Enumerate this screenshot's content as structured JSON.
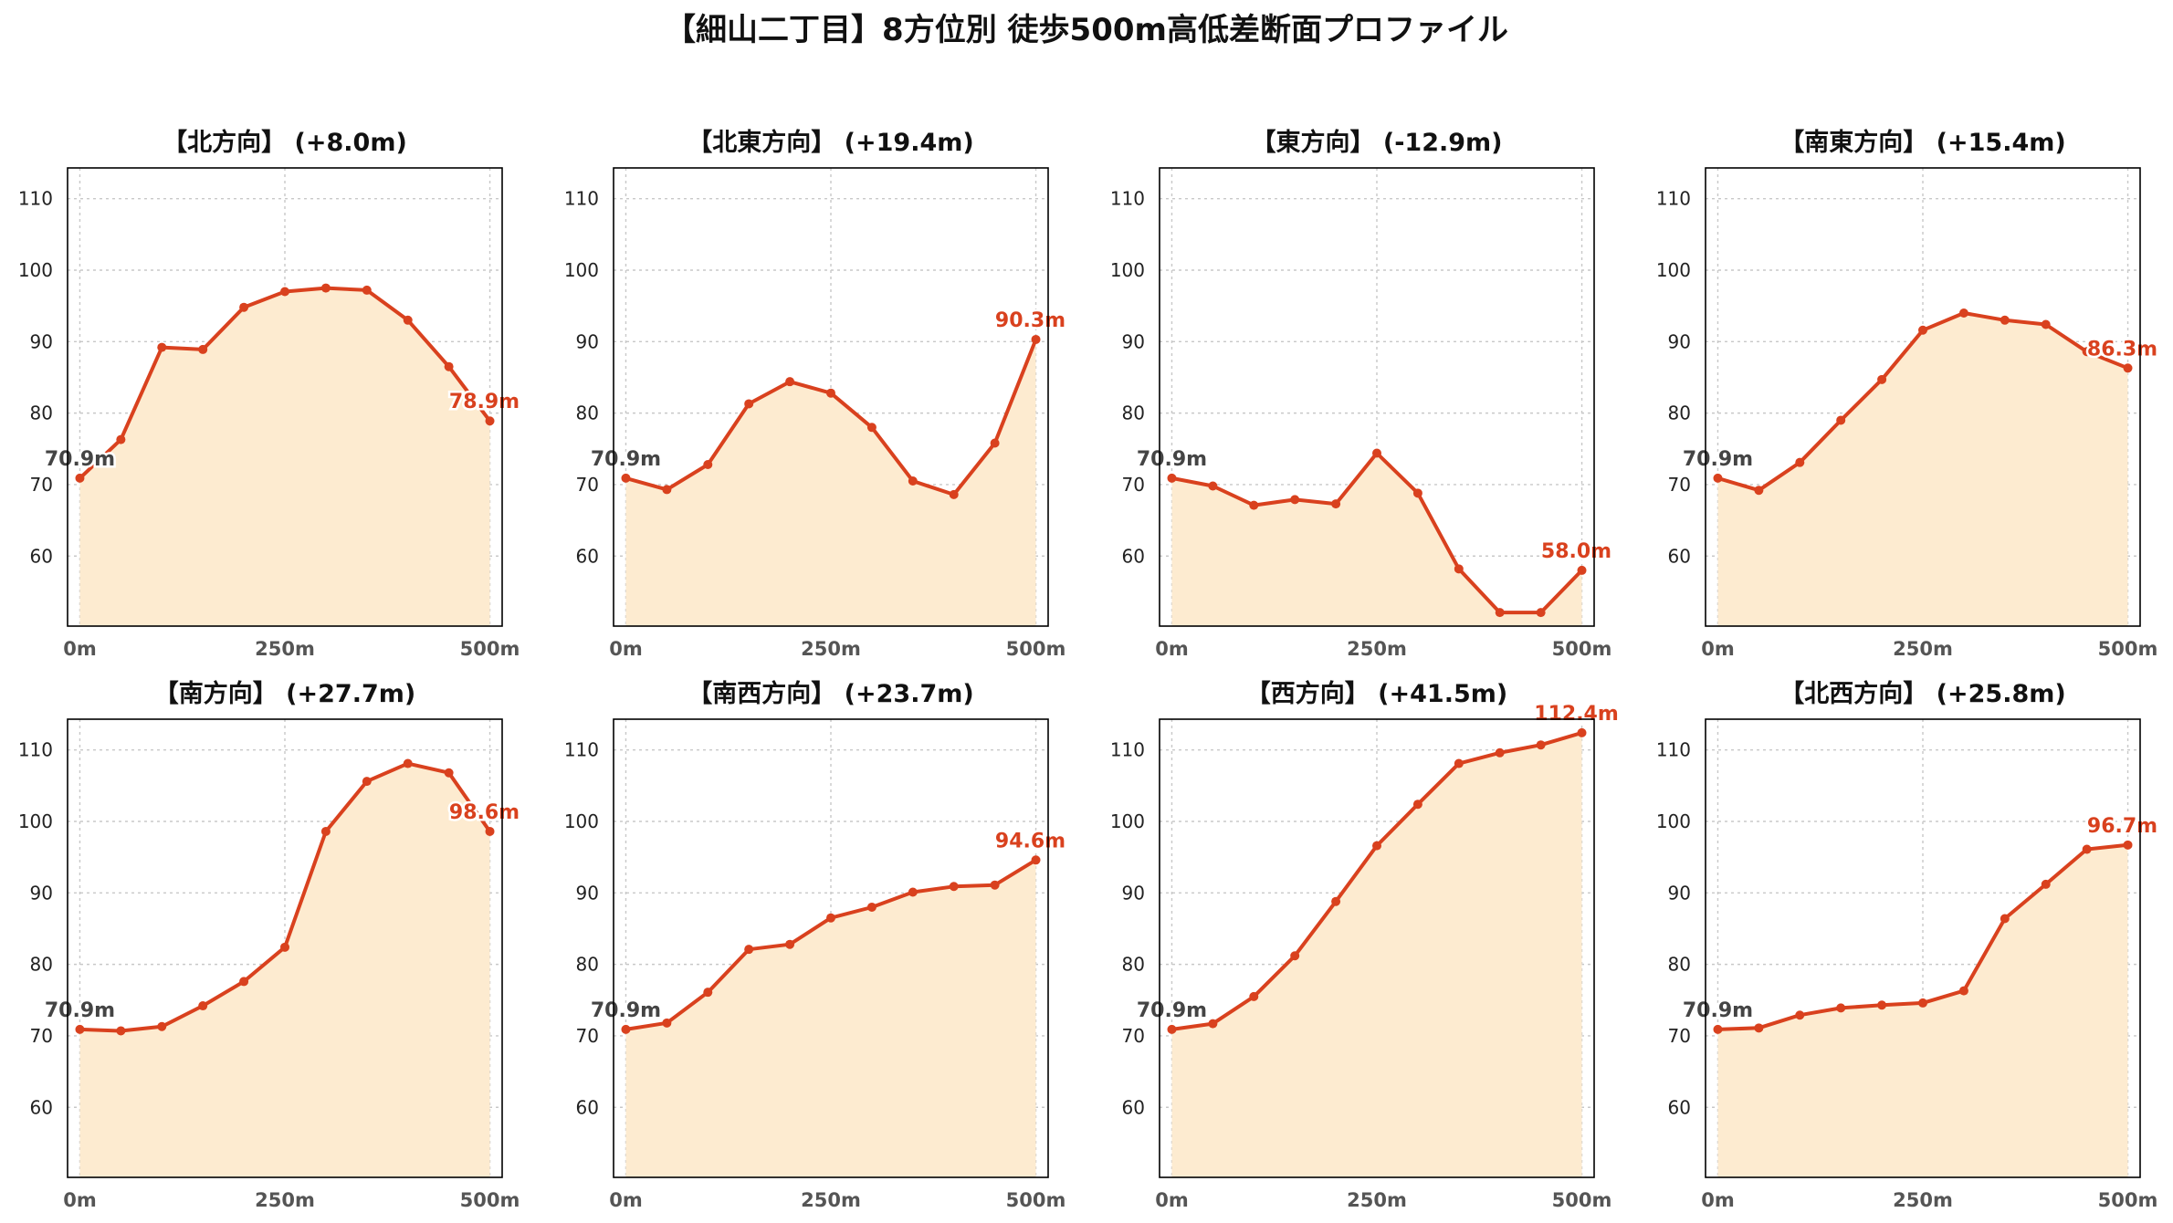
{
  "colors": {
    "line": "#d9411e",
    "fill": "#fdebd0",
    "start_label": "#444444",
    "end_label": "#d9411e"
  },
  "chart_data": {
    "type": "area",
    "title": "【細山二丁目】8方位別 徒歩500m高低差断面プロファイル",
    "x": [
      0,
      50,
      100,
      150,
      200,
      250,
      300,
      350,
      400,
      450,
      500
    ],
    "xticks": [
      0,
      250,
      500
    ],
    "xtick_labels": [
      "0m",
      "250m",
      "500m"
    ],
    "xlim": [
      -15,
      515
    ],
    "ylim": [
      50.2,
      114.3
    ],
    "yticks": [
      60,
      70,
      80,
      90,
      100,
      110
    ],
    "ytick_labels": [
      "60",
      "70",
      "80",
      "90",
      "100",
      "110"
    ],
    "grid": true,
    "layout": "2x4",
    "panels": [
      {
        "title": "【北方向】 (+8.0m)",
        "start_label": "70.9m",
        "end_label": "78.9m",
        "values": [
          70.9,
          76.3,
          89.2,
          88.9,
          94.8,
          97.0,
          97.5,
          97.2,
          93.0,
          86.5,
          78.9
        ]
      },
      {
        "title": "【北東方向】 (+19.4m)",
        "start_label": "70.9m",
        "end_label": "90.3m",
        "values": [
          70.9,
          69.3,
          72.8,
          81.3,
          84.4,
          82.8,
          78.0,
          70.5,
          68.6,
          75.8,
          90.3
        ]
      },
      {
        "title": "【東方向】 (-12.9m)",
        "start_label": "70.9m",
        "end_label": "58.0m",
        "values": [
          70.9,
          69.8,
          67.1,
          67.9,
          67.3,
          74.4,
          68.8,
          58.2,
          52.1,
          52.1,
          58.0
        ]
      },
      {
        "title": "【南東方向】 (+15.4m)",
        "start_label": "70.9m",
        "end_label": "86.3m",
        "values": [
          70.9,
          69.2,
          73.1,
          79.0,
          84.7,
          91.6,
          94.0,
          93.0,
          92.4,
          88.6,
          86.3
        ]
      },
      {
        "title": "【南方向】 (+27.7m)",
        "start_label": "70.9m",
        "end_label": "98.6m",
        "values": [
          70.9,
          70.7,
          71.3,
          74.2,
          77.6,
          82.4,
          98.6,
          105.6,
          108.1,
          106.8,
          98.6
        ]
      },
      {
        "title": "【南西方向】 (+23.7m)",
        "start_label": "70.9m",
        "end_label": "94.6m",
        "values": [
          70.9,
          71.8,
          76.1,
          82.1,
          82.8,
          86.5,
          88.0,
          90.1,
          90.9,
          91.1,
          94.6
        ]
      },
      {
        "title": "【西方向】 (+41.5m)",
        "start_label": "70.9m",
        "end_label": "112.4m",
        "values": [
          70.9,
          71.7,
          75.5,
          81.2,
          88.8,
          96.6,
          102.4,
          108.1,
          109.6,
          110.7,
          112.4
        ]
      },
      {
        "title": "【北西方向】 (+25.8m)",
        "start_label": "70.9m",
        "end_label": "96.7m",
        "values": [
          70.9,
          71.1,
          72.9,
          73.9,
          74.3,
          74.6,
          76.3,
          86.4,
          91.2,
          96.1,
          96.7
        ]
      }
    ]
  }
}
